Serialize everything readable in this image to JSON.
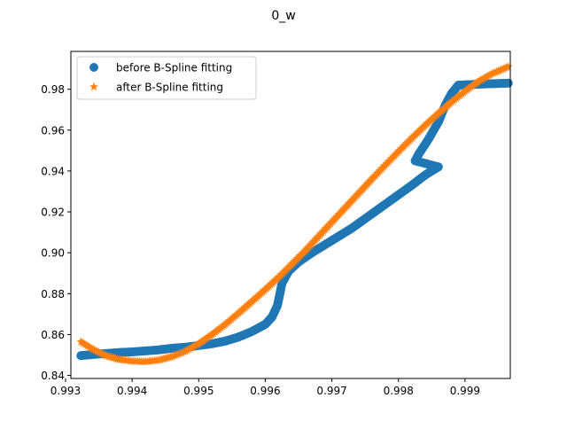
{
  "chart_data": {
    "type": "scatter",
    "title": "0_w",
    "xlabel": "",
    "ylabel": "",
    "xlim": [
      0.99308,
      0.99968
    ],
    "ylim": [
      0.8385,
      0.9985
    ],
    "xticks": [
      0.993,
      0.994,
      0.995,
      0.996,
      0.997,
      0.998,
      0.999
    ],
    "xtick_labels": [
      "0.993",
      "0.994",
      "0.995",
      "0.996",
      "0.997",
      "0.998",
      "0.999"
    ],
    "yticks": [
      0.84,
      0.86,
      0.88,
      0.9,
      0.92,
      0.94,
      0.96,
      0.98
    ],
    "ytick_labels": [
      "0.84",
      "0.86",
      "0.88",
      "0.90",
      "0.92",
      "0.94",
      "0.96",
      "0.98"
    ],
    "grid": false,
    "legend_position": "upper-left",
    "series": [
      {
        "name": "before B-Spline fitting",
        "marker": "circle",
        "color": "#1f77b4",
        "points": [
          [
            0.99323,
            0.8497
          ],
          [
            0.9934,
            0.8502
          ],
          [
            0.9936,
            0.8507
          ],
          [
            0.9938,
            0.8512
          ],
          [
            0.994,
            0.8515
          ],
          [
            0.9942,
            0.852
          ],
          [
            0.9944,
            0.8525
          ],
          [
            0.9946,
            0.8533
          ],
          [
            0.9948,
            0.8538
          ],
          [
            0.995,
            0.8546
          ],
          [
            0.9952,
            0.8555
          ],
          [
            0.9954,
            0.8568
          ],
          [
            0.9956,
            0.8588
          ],
          [
            0.9958,
            0.8615
          ],
          [
            0.996,
            0.865
          ],
          [
            0.9961,
            0.8685
          ],
          [
            0.99618,
            0.874
          ],
          [
            0.99622,
            0.88
          ],
          [
            0.99625,
            0.885
          ],
          [
            0.99635,
            0.891
          ],
          [
            0.9965,
            0.8955
          ],
          [
            0.9967,
            0.9
          ],
          [
            0.997,
            0.906
          ],
          [
            0.9973,
            0.912
          ],
          [
            0.9976,
            0.919
          ],
          [
            0.9979,
            0.926
          ],
          [
            0.9982,
            0.933
          ],
          [
            0.9984,
            0.938
          ],
          [
            0.9986,
            0.942
          ],
          [
            0.99825,
            0.945
          ],
          [
            0.9983,
            0.948
          ],
          [
            0.99845,
            0.9555
          ],
          [
            0.9986,
            0.964
          ],
          [
            0.9987,
            0.972
          ],
          [
            0.9988,
            0.978
          ],
          [
            0.9989,
            0.982
          ],
          [
            0.9991,
            0.9823
          ],
          [
            0.9993,
            0.9826
          ],
          [
            0.9995,
            0.9828
          ],
          [
            0.99965,
            0.983
          ]
        ]
      },
      {
        "name": "after B-Spline fitting",
        "marker": "star",
        "color": "#ff7f0e",
        "points": [
          [
            0.99323,
            0.8565
          ],
          [
            0.9934,
            0.853
          ],
          [
            0.9936,
            0.8497
          ],
          [
            0.9938,
            0.8478
          ],
          [
            0.994,
            0.847
          ],
          [
            0.9942,
            0.8467
          ],
          [
            0.9944,
            0.8475
          ],
          [
            0.9946,
            0.8492
          ],
          [
            0.9948,
            0.8518
          ],
          [
            0.995,
            0.8555
          ],
          [
            0.9952,
            0.86
          ],
          [
            0.9954,
            0.865
          ],
          [
            0.9956,
            0.8705
          ],
          [
            0.9958,
            0.8762
          ],
          [
            0.996,
            0.882
          ],
          [
            0.9962,
            0.888
          ],
          [
            0.9964,
            0.8945
          ],
          [
            0.9966,
            0.901
          ],
          [
            0.9968,
            0.908
          ],
          [
            0.997,
            0.915
          ],
          [
            0.9972,
            0.922
          ],
          [
            0.9974,
            0.929
          ],
          [
            0.9976,
            0.936
          ],
          [
            0.9978,
            0.9428
          ],
          [
            0.998,
            0.9495
          ],
          [
            0.9982,
            0.956
          ],
          [
            0.9984,
            0.9623
          ],
          [
            0.9986,
            0.9682
          ],
          [
            0.9988,
            0.9738
          ],
          [
            0.999,
            0.979
          ],
          [
            0.9992,
            0.9838
          ],
          [
            0.9994,
            0.9875
          ],
          [
            0.99965,
            0.991
          ]
        ]
      }
    ]
  }
}
